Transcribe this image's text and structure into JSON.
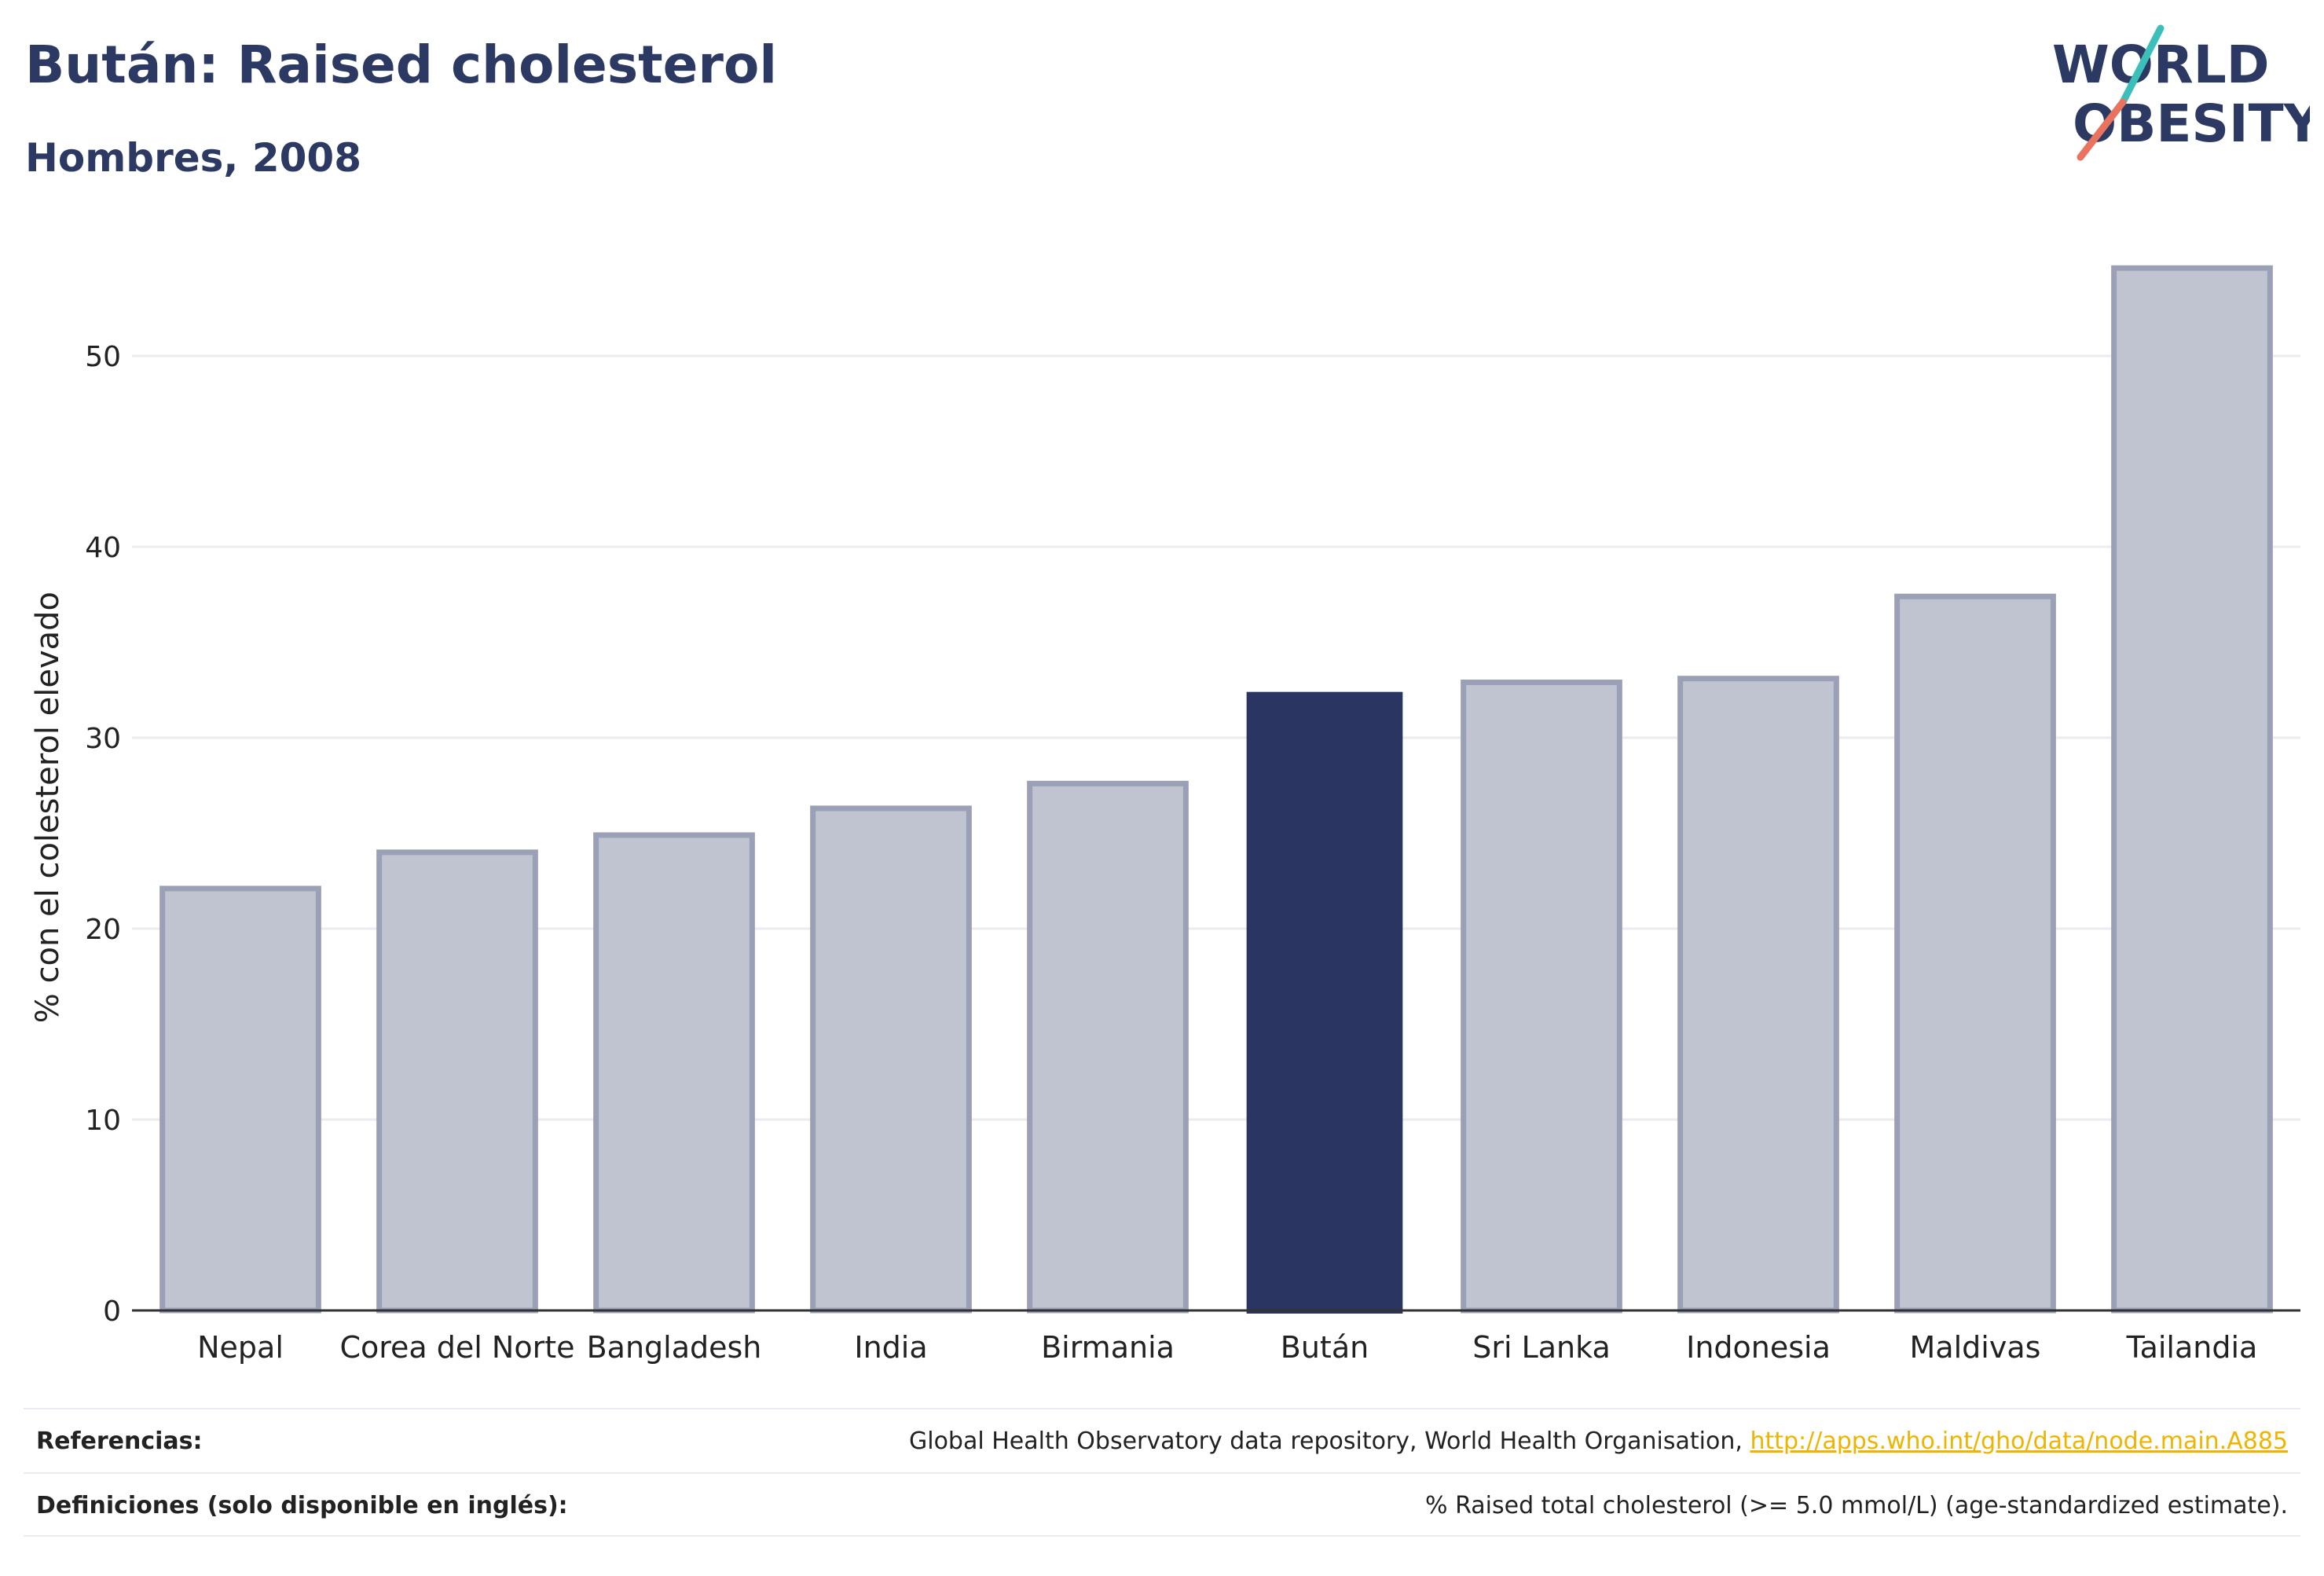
{
  "header": {
    "title": "Bután: Raised cholesterol",
    "subtitle": "Hombres, 2008"
  },
  "logo": {
    "line1": "WORLD",
    "line2": "OBESITY"
  },
  "chart_data": {
    "type": "bar",
    "title": "Bután: Raised cholesterol",
    "subtitle": "Hombres, 2008",
    "ylabel": "% con el colesterol elevado",
    "xlabel": "",
    "ylim": [
      0,
      56
    ],
    "yticks": [
      0,
      10,
      20,
      30,
      40,
      50
    ],
    "categories": [
      "Nepal",
      "Corea del Norte",
      "Bangladesh",
      "India",
      "Birmania",
      "Bután",
      "Sri Lanka",
      "Indonesia",
      "Maldivas",
      "Tailandia"
    ],
    "values": [
      22.1,
      24.0,
      24.9,
      26.3,
      27.6,
      32.4,
      32.9,
      33.1,
      37.4,
      54.6
    ],
    "highlight": "Bután",
    "colors": {
      "bar": "#c0c4d0",
      "bar_border": "#9aa0b5",
      "highlight": "#2a3661",
      "grid": "#ebebf0"
    },
    "grid": true
  },
  "footer": {
    "references_label": "Referencias:",
    "references_text": "Global Health Observatory data repository, World Health Organisation,",
    "references_link": "http://apps.who.int/gho/data/node.main.A885",
    "definitions_label": "Definiciones (solo disponible en inglés):",
    "definitions_text": "% Raised total cholesterol (>= 5.0 mmol/L) (age-standardized estimate)."
  }
}
